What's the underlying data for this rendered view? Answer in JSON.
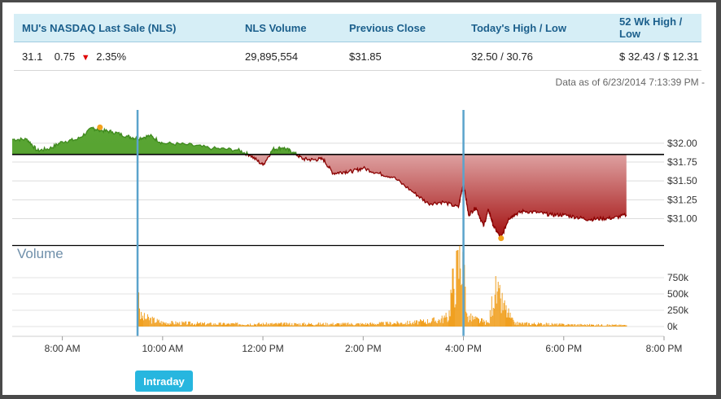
{
  "quote_table": {
    "headers": [
      "MU's NASDAQ Last Sale (NLS)",
      "NLS Volume",
      "Previous Close",
      "Today's High / Low",
      "52 Wk High / Low"
    ],
    "last_sale": "31.1",
    "change": "0.75",
    "change_pct": "2.35%",
    "volume": "29,895,554",
    "previous_close": "$31.85",
    "todays_high_low": "32.50 / 30.76",
    "wk52_high_low": "$ 32.43 / $ 12.31"
  },
  "data_as_of": "Data as of 6/23/2014 7:13:39 PM -",
  "buttons": {
    "intraday": "Intraday"
  },
  "chart_data": {
    "type": "area",
    "price": {
      "ylim": [
        30.65,
        32.3
      ],
      "y_ticks": [
        32.0,
        31.75,
        31.5,
        31.25,
        31.0
      ],
      "y_tick_labels": [
        "$32.00",
        "$31.75",
        "$31.50",
        "$31.25",
        "$31.00"
      ],
      "previous_close": 31.85,
      "x": [
        7.0,
        7.3,
        7.5,
        7.75,
        8.0,
        8.3,
        8.6,
        8.75,
        9.0,
        9.3,
        9.5,
        9.75,
        10.0,
        10.5,
        11.0,
        11.5,
        11.75,
        12.0,
        12.2,
        12.4,
        12.6,
        12.8,
        13.0,
        13.2,
        13.4,
        13.6,
        13.8,
        14.0,
        14.3,
        14.6,
        15.0,
        15.3,
        15.6,
        15.9,
        16.0,
        16.1,
        16.25,
        16.4,
        16.5,
        16.6,
        16.75,
        16.9,
        17.0,
        17.2,
        17.5,
        17.75,
        18.0,
        18.25,
        18.5,
        18.75,
        19.0,
        19.25
      ],
      "y": [
        32.05,
        32.05,
        31.9,
        31.93,
        32.02,
        32.05,
        32.2,
        32.17,
        32.15,
        32.09,
        32.06,
        32.1,
        32.0,
        31.98,
        31.93,
        31.91,
        31.84,
        31.71,
        31.92,
        31.94,
        31.88,
        31.79,
        31.78,
        31.79,
        31.6,
        31.62,
        31.63,
        31.67,
        31.6,
        31.55,
        31.35,
        31.2,
        31.22,
        31.15,
        31.48,
        31.05,
        31.15,
        30.9,
        31.12,
        30.9,
        30.74,
        31.0,
        31.05,
        31.1,
        31.08,
        31.05,
        31.05,
        31.02,
        30.99,
        31.0,
        31.01,
        31.05
      ]
    },
    "volume": {
      "title": "Volume",
      "ylim": [
        0,
        1200000
      ],
      "y_ticks": [
        0,
        250000,
        500000,
        750000
      ],
      "y_tick_labels": [
        "0k",
        "250k",
        "500k",
        "750k"
      ],
      "x": [
        9.5,
        9.55,
        10.0,
        11.0,
        12.0,
        13.0,
        14.0,
        15.0,
        15.5,
        15.7,
        15.75,
        16.0,
        16.05,
        16.5,
        16.6,
        17.0,
        18.0,
        19.25
      ],
      "y": [
        700000,
        150000,
        60000,
        40000,
        40000,
        40000,
        40000,
        60000,
        100000,
        150000,
        550000,
        1200000,
        150000,
        50000,
        550000,
        50000,
        30000,
        20000
      ]
    },
    "x_axis": {
      "ticks": [
        8,
        10,
        12,
        14,
        16,
        18,
        20
      ],
      "tick_labels": [
        "8:00 AM",
        "10:00 AM",
        "12:00 PM",
        "2:00 PM",
        "4:00 PM",
        "6:00 PM",
        "8:00 PM"
      ],
      "xlim": [
        7.0,
        20.0
      ]
    },
    "session_markers": [
      9.5,
      16.0
    ],
    "high_point": {
      "x": 8.75,
      "y": 32.21
    },
    "low_point": {
      "x": 16.75,
      "y": 30.74
    },
    "colors": {
      "up_fill": "#5aa634",
      "up_line": "#3f8a1e",
      "down_fill": "#a31010",
      "down_line": "#8a0000",
      "volume_bar": "#f0a020",
      "marker_line": "#5aa3cc",
      "point_marker": "#f3a21c"
    }
  }
}
